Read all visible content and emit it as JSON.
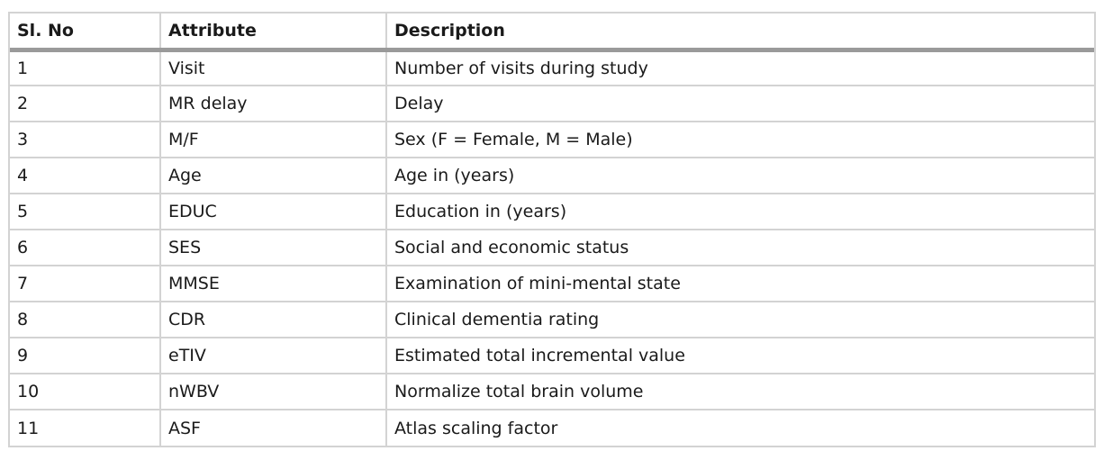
{
  "table": {
    "headers": [
      "Sl. No",
      "Attribute",
      "Description"
    ],
    "rows": [
      [
        "1",
        "Visit",
        "Number of visits during study"
      ],
      [
        "2",
        "MR delay",
        "Delay"
      ],
      [
        "3",
        "M/F",
        "Sex (F = Female, M = Male)"
      ],
      [
        "4",
        "Age",
        "Age in (years)"
      ],
      [
        "5",
        "EDUC",
        "Education in (years)"
      ],
      [
        "6",
        "SES",
        "Social and economic status"
      ],
      [
        "7",
        "MMSE",
        "Examination of mini-mental state"
      ],
      [
        "8",
        "CDR",
        "Clinical dementia rating"
      ],
      [
        "9",
        "eTIV",
        "Estimated total incremental value"
      ],
      [
        "10",
        "nWBV",
        "Normalize total brain volume"
      ],
      [
        "11",
        "ASF",
        "Atlas scaling factor"
      ]
    ]
  }
}
